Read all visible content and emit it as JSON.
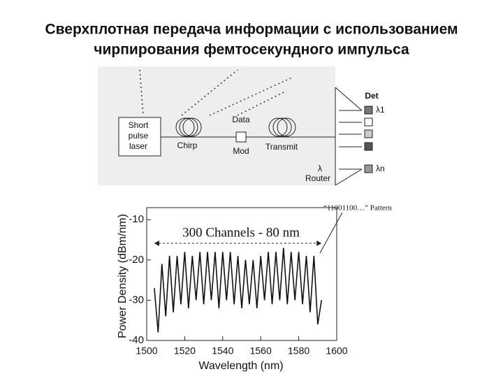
{
  "title": [
    "Сверхплотная передача информации с использованием",
    "чирпирования фемтосекундного импульса"
  ],
  "diagram": {
    "laser": [
      "Short",
      "pulse",
      "laser"
    ],
    "chirp": "Chirp",
    "data": "Data",
    "mod": "Mod",
    "transmit": "Transmit",
    "det": "Det",
    "lambda_1": "λ1",
    "lambda_n": "λn",
    "router_symbol": "λ",
    "router": "Router"
  },
  "chart_data": {
    "type": "line",
    "xlabel": "Wavelength (nm)",
    "ylabel": "Power Density (dBm/nm)",
    "annotations": [
      "300 Channels - 80 nm",
      "“11001100…” Pattern"
    ],
    "x": [
      1504,
      1506,
      1508,
      1510,
      1512,
      1514,
      1516,
      1518,
      1520,
      1522,
      1524,
      1526,
      1528,
      1530,
      1532,
      1534,
      1536,
      1538,
      1540,
      1542,
      1544,
      1546,
      1548,
      1550,
      1552,
      1554,
      1556,
      1558,
      1560,
      1562,
      1564,
      1566,
      1568,
      1570,
      1572,
      1574,
      1576,
      1578,
      1580,
      1582,
      1584,
      1586,
      1588,
      1590,
      1592
    ],
    "values": [
      -27,
      -38,
      -21,
      -34,
      -19,
      -33,
      -19,
      -31,
      -18,
      -32,
      -19,
      -30,
      -18,
      -31,
      -18,
      -30,
      -18,
      -32,
      -18,
      -30,
      -18,
      -31,
      -19,
      -32,
      -20,
      -31,
      -20,
      -32,
      -19,
      -30,
      -18,
      -31,
      -18,
      -30,
      -17,
      -31,
      -18,
      -30,
      -18,
      -31,
      -19,
      -33,
      -19,
      -36,
      -30
    ],
    "color": "#111111",
    "xlim": [
      1500,
      1600
    ],
    "xticks": [
      1500,
      1520,
      1540,
      1560,
      1580,
      1600
    ],
    "ylim": [
      -40,
      -7
    ],
    "yticks": [
      -10,
      -20,
      -30,
      -40
    ]
  }
}
